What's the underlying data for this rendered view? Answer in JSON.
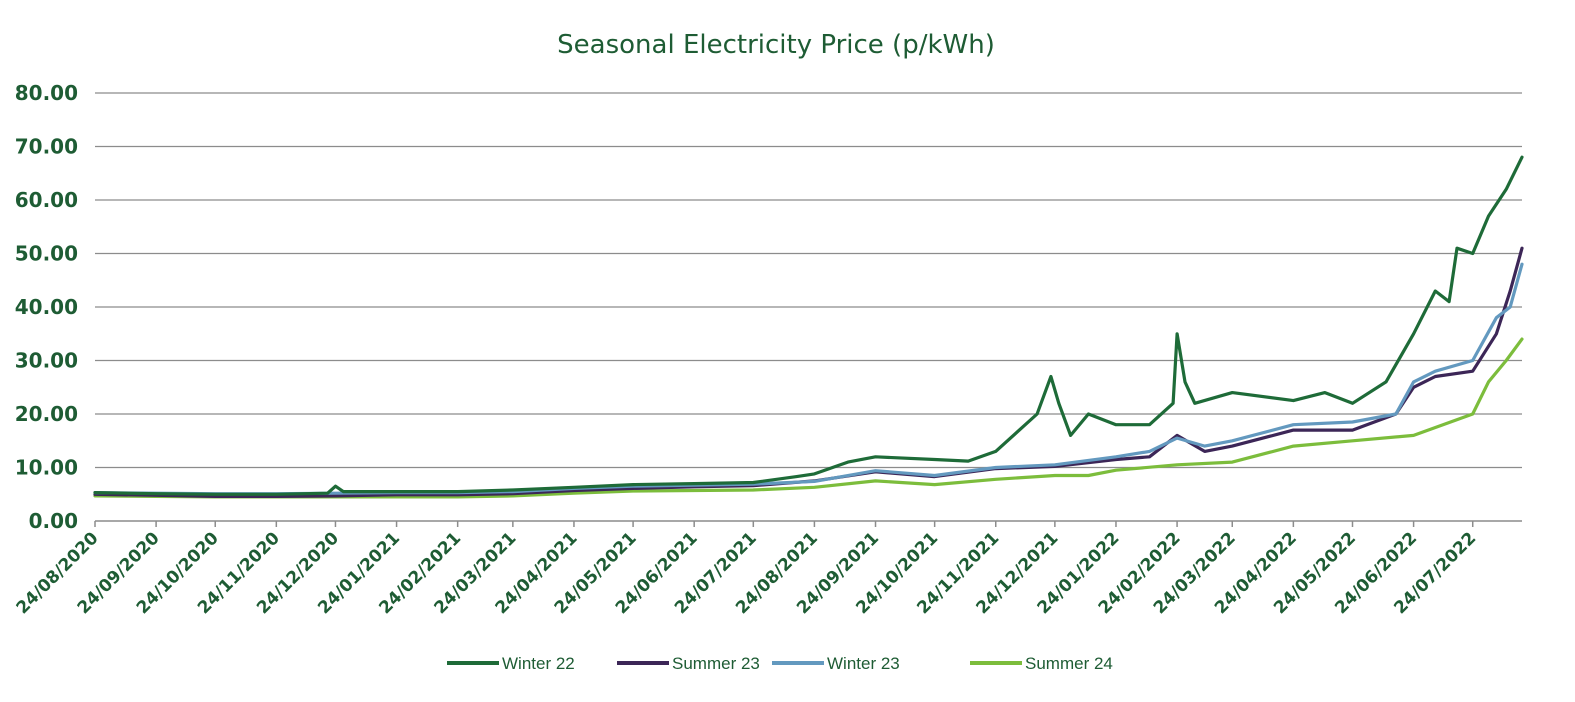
{
  "chart_data": {
    "type": "line",
    "title": "Seasonal Electricity Price (p/kWh)",
    "xlabel": "",
    "ylabel": "",
    "ylim": [
      0,
      80
    ],
    "yticks": [
      "0.00",
      "10.00",
      "20.00",
      "30.00",
      "40.00",
      "50.00",
      "60.00",
      "70.00",
      "80.00"
    ],
    "xlim": [
      "2020-08-24",
      "2022-08-18"
    ],
    "xticks": [
      {
        "label": "24/08/2020",
        "date": "2020-08-24"
      },
      {
        "label": "24/09/2020",
        "date": "2020-09-24"
      },
      {
        "label": "24/10/2020",
        "date": "2020-10-24"
      },
      {
        "label": "24/11/2020",
        "date": "2020-11-24"
      },
      {
        "label": "24/12/2020",
        "date": "2020-12-24"
      },
      {
        "label": "24/01/2021",
        "date": "2021-01-24"
      },
      {
        "label": "24/02/2021",
        "date": "2021-02-24"
      },
      {
        "label": "24/03/2021",
        "date": "2021-03-24"
      },
      {
        "label": "24/04/2021",
        "date": "2021-04-24"
      },
      {
        "label": "24/05/2021",
        "date": "2021-05-24"
      },
      {
        "label": "24/06/2021",
        "date": "2021-06-24"
      },
      {
        "label": "24/07/2021",
        "date": "2021-07-24"
      },
      {
        "label": "24/08/2021",
        "date": "2021-08-24"
      },
      {
        "label": "24/09/2021",
        "date": "2021-09-24"
      },
      {
        "label": "24/10/2021",
        "date": "2021-10-24"
      },
      {
        "label": "24/11/2021",
        "date": "2021-11-24"
      },
      {
        "label": "24/12/2021",
        "date": "2021-12-24"
      },
      {
        "label": "24/01/2022",
        "date": "2022-01-24"
      },
      {
        "label": "24/02/2022",
        "date": "2022-02-24"
      },
      {
        "label": "24/03/2022",
        "date": "2022-03-24"
      },
      {
        "label": "24/04/2022",
        "date": "2022-04-24"
      },
      {
        "label": "24/05/2022",
        "date": "2022-05-24"
      },
      {
        "label": "24/06/2022",
        "date": "2022-06-24"
      },
      {
        "label": "24/07/2022",
        "date": "2022-07-24"
      }
    ],
    "grid": true,
    "legend_position": "bottom",
    "series": [
      {
        "name": "Winter 22",
        "color": "#1e6b38",
        "x": [
          "2020-08-24",
          "2020-09-24",
          "2020-10-24",
          "2020-11-24",
          "2020-12-20",
          "2020-12-24",
          "2020-12-28",
          "2021-01-24",
          "2021-02-24",
          "2021-03-24",
          "2021-04-24",
          "2021-05-24",
          "2021-06-24",
          "2021-07-24",
          "2021-08-15",
          "2021-08-24",
          "2021-09-10",
          "2021-09-24",
          "2021-10-24",
          "2021-11-10",
          "2021-11-24",
          "2021-12-15",
          "2021-12-22",
          "2021-12-26",
          "2022-01-01",
          "2022-01-10",
          "2022-01-24",
          "2022-02-10",
          "2022-02-22",
          "2022-02-24",
          "2022-02-28",
          "2022-03-05",
          "2022-03-24",
          "2022-04-24",
          "2022-05-10",
          "2022-05-24",
          "2022-06-10",
          "2022-06-24",
          "2022-07-05",
          "2022-07-12",
          "2022-07-16",
          "2022-07-24",
          "2022-08-01",
          "2022-08-10",
          "2022-08-18"
        ],
        "y": [
          5.3,
          5.1,
          5.0,
          5.0,
          5.2,
          6.5,
          5.5,
          5.5,
          5.5,
          5.8,
          6.3,
          6.8,
          7.0,
          7.2,
          8.3,
          8.8,
          11.0,
          12.0,
          11.5,
          11.2,
          13.0,
          20.0,
          27.0,
          22.0,
          16.0,
          20.0,
          18.0,
          18.0,
          22.0,
          35.0,
          26.0,
          22.0,
          24.0,
          22.5,
          24.0,
          22.0,
          26.0,
          35.0,
          43.0,
          41.0,
          51.0,
          50.0,
          57.0,
          62.0,
          68.0
        ]
      },
      {
        "name": "Summer 23",
        "color": "#3c2657",
        "x": [
          "2020-08-24",
          "2020-09-24",
          "2020-10-24",
          "2020-11-24",
          "2020-12-24",
          "2021-01-24",
          "2021-02-24",
          "2021-03-24",
          "2021-04-24",
          "2021-05-24",
          "2021-06-24",
          "2021-07-24",
          "2021-08-24",
          "2021-09-24",
          "2021-10-24",
          "2021-11-24",
          "2021-12-24",
          "2022-01-24",
          "2022-02-10",
          "2022-02-24",
          "2022-03-10",
          "2022-03-24",
          "2022-04-24",
          "2022-05-24",
          "2022-06-15",
          "2022-06-24",
          "2022-07-05",
          "2022-07-24",
          "2022-08-05",
          "2022-08-12",
          "2022-08-18"
        ],
        "y": [
          5.0,
          4.8,
          4.6,
          4.6,
          4.7,
          4.9,
          4.9,
          5.1,
          5.7,
          6.1,
          6.4,
          6.6,
          7.5,
          9.2,
          8.3,
          9.8,
          10.2,
          11.5,
          12.0,
          16.0,
          13.0,
          14.0,
          17.0,
          17.0,
          20.0,
          25.0,
          27.0,
          28.0,
          35.0,
          43.0,
          51.0
        ]
      },
      {
        "name": "Winter 23",
        "color": "#6399bf",
        "x": [
          "2020-08-24",
          "2020-09-24",
          "2020-10-24",
          "2020-11-24",
          "2020-12-24",
          "2021-01-24",
          "2021-02-24",
          "2021-03-24",
          "2021-04-24",
          "2021-05-24",
          "2021-06-24",
          "2021-07-24",
          "2021-08-24",
          "2021-09-24",
          "2021-10-24",
          "2021-11-24",
          "2021-12-24",
          "2022-01-24",
          "2022-02-10",
          "2022-02-24",
          "2022-03-10",
          "2022-03-24",
          "2022-04-24",
          "2022-05-24",
          "2022-06-15",
          "2022-06-24",
          "2022-07-05",
          "2022-07-24",
          "2022-08-05",
          "2022-08-12",
          "2022-08-18"
        ],
        "y": [
          5.3,
          5.2,
          5.1,
          5.1,
          5.2,
          5.3,
          5.3,
          5.5,
          6.1,
          6.5,
          6.7,
          6.9,
          7.4,
          9.4,
          8.5,
          10.0,
          10.5,
          12.0,
          13.0,
          15.5,
          14.0,
          15.0,
          18.0,
          18.5,
          20.0,
          26.0,
          28.0,
          30.0,
          38.0,
          40.0,
          48.0
        ]
      },
      {
        "name": "Summer 24",
        "color": "#7cbd3c",
        "x": [
          "2020-08-24",
          "2020-09-24",
          "2020-10-24",
          "2020-11-24",
          "2020-12-24",
          "2021-01-24",
          "2021-02-24",
          "2021-03-24",
          "2021-04-24",
          "2021-05-24",
          "2021-06-24",
          "2021-07-24",
          "2021-08-24",
          "2021-09-24",
          "2021-10-24",
          "2021-11-24",
          "2021-12-24",
          "2022-01-10",
          "2022-01-24",
          "2022-02-24",
          "2022-03-24",
          "2022-04-24",
          "2022-05-24",
          "2022-06-24",
          "2022-07-24",
          "2022-08-01",
          "2022-08-10",
          "2022-08-18"
        ],
        "y": [
          4.7,
          4.6,
          4.5,
          4.5,
          4.5,
          4.5,
          4.5,
          4.7,
          5.2,
          5.6,
          5.7,
          5.8,
          6.3,
          7.5,
          6.8,
          7.8,
          8.5,
          8.5,
          9.5,
          10.5,
          11.0,
          14.0,
          15.0,
          16.0,
          20.0,
          26.0,
          30.0,
          34.0
        ]
      }
    ]
  }
}
